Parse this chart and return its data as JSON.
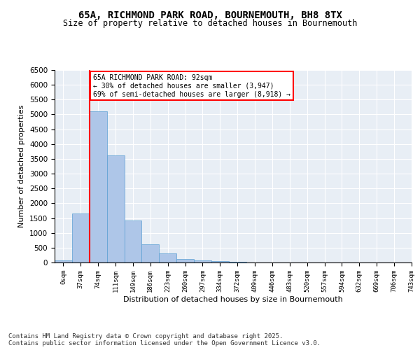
{
  "title": "65A, RICHMOND PARK ROAD, BOURNEMOUTH, BH8 8TX",
  "subtitle": "Size of property relative to detached houses in Bournemouth",
  "xlabel": "Distribution of detached houses by size in Bournemouth",
  "ylabel": "Number of detached properties",
  "bar_values": [
    75,
    1650,
    5100,
    3620,
    1420,
    620,
    310,
    130,
    75,
    45,
    20,
    0,
    0,
    0,
    0,
    0,
    0,
    0,
    0,
    0
  ],
  "bin_labels": [
    "0sqm",
    "37sqm",
    "74sqm",
    "111sqm",
    "149sqm",
    "186sqm",
    "223sqm",
    "260sqm",
    "297sqm",
    "334sqm",
    "372sqm",
    "409sqm",
    "446sqm",
    "483sqm",
    "520sqm",
    "557sqm",
    "594sqm",
    "632sqm",
    "669sqm",
    "706sqm",
    "743sqm"
  ],
  "bar_color": "#aec6e8",
  "bar_edge_color": "#5a9fd4",
  "vline_x": 2,
  "vline_color": "red",
  "annotation_text": "65A RICHMOND PARK ROAD: 92sqm\n← 30% of detached houses are smaller (3,947)\n69% of semi-detached houses are larger (8,918) →",
  "annotation_box_color": "white",
  "annotation_box_edge": "red",
  "ylim": [
    0,
    6500
  ],
  "yticks": [
    0,
    500,
    1000,
    1500,
    2000,
    2500,
    3000,
    3500,
    4000,
    4500,
    5000,
    5500,
    6000,
    6500
  ],
  "background_color": "#e8eef5",
  "footer_text": "Contains HM Land Registry data © Crown copyright and database right 2025.\nContains public sector information licensed under the Open Government Licence v3.0.",
  "title_fontsize": 10,
  "subtitle_fontsize": 8.5,
  "footer_fontsize": 6.5
}
